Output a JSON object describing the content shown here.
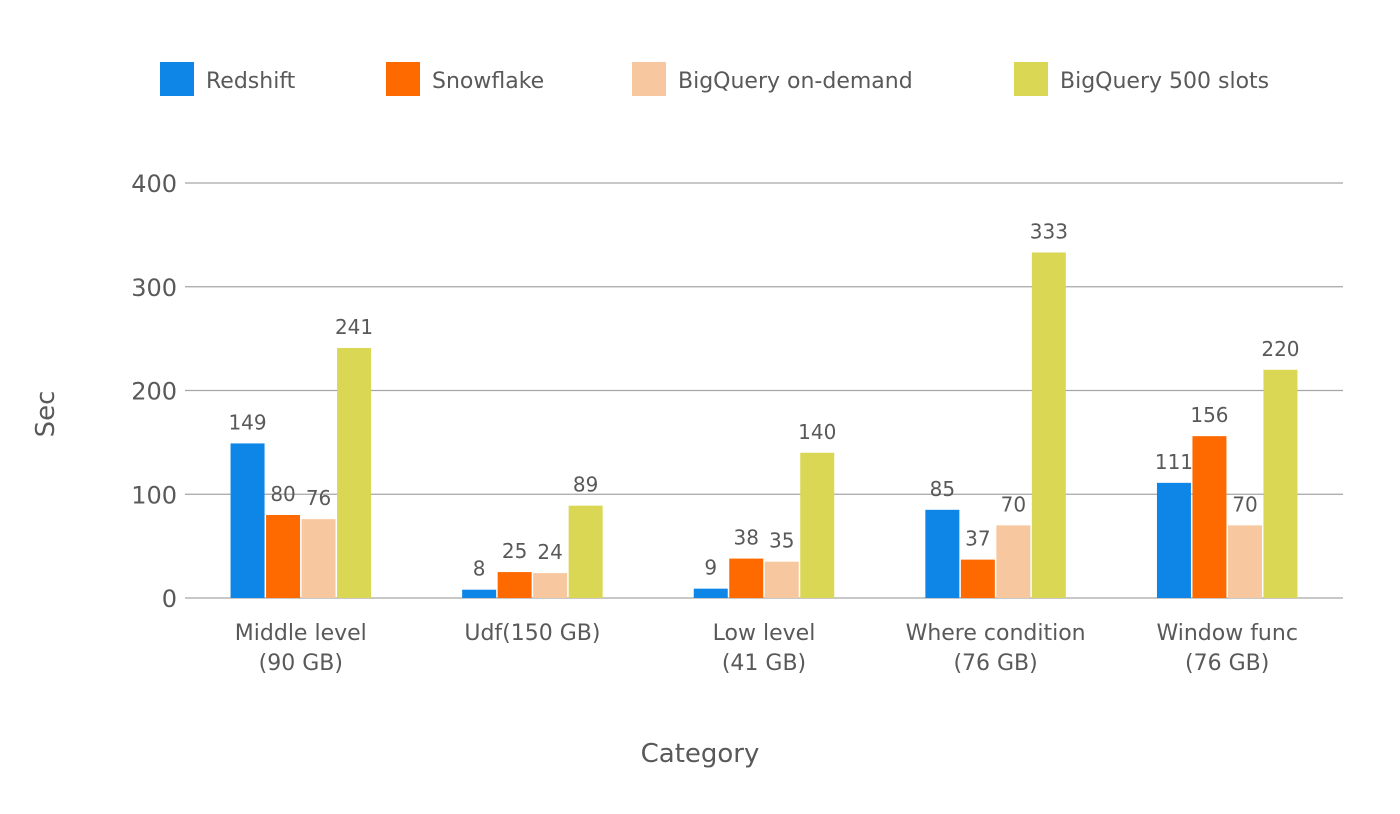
{
  "chart_data": {
    "type": "bar",
    "categories": [
      [
        "Middle level",
        "(90 GB)"
      ],
      [
        "Udf(150 GB)"
      ],
      [
        "Low level",
        "(41 GB)"
      ],
      [
        "Where condition",
        "(76 GB)"
      ],
      [
        "Window func",
        "(76 GB)"
      ]
    ],
    "series": [
      {
        "name": "Redshift",
        "color": "#0D86E8",
        "values": [
          149,
          8,
          9,
          85,
          111
        ]
      },
      {
        "name": "Snowflake",
        "color": "#FF6A00",
        "values": [
          80,
          25,
          38,
          37,
          156
        ]
      },
      {
        "name": "BigQuery on-demand",
        "color": "#F7C8A0",
        "values": [
          76,
          24,
          35,
          70,
          70
        ]
      },
      {
        "name": "BigQuery 500 slots",
        "color": "#DAD755",
        "values": [
          241,
          89,
          140,
          333,
          220
        ]
      }
    ],
    "xlabel": "Category",
    "ylabel": "Sec",
    "ylim": [
      0,
      400
    ],
    "yticks": [
      0,
      100,
      200,
      300,
      400
    ],
    "grid": true,
    "legend_position": "top"
  }
}
